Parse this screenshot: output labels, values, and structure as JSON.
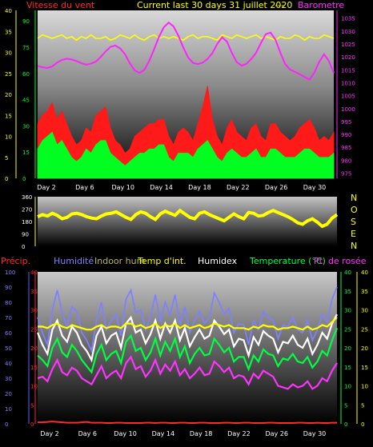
{
  "header": {
    "wind_label": "Vitesse du vent",
    "title": "Current last 30 days 31 juillet 2020",
    "sep": "---",
    "baro_label": "Barometre"
  },
  "legend": {
    "precip": "Précip.",
    "humidite": "Humidité",
    "indoor_hum": "Indoor hum",
    "temp_int": "Temp d'int.",
    "humidex": "Humidex",
    "temperature": "Temperature (°C)",
    "dew": "Pt. de rosée"
  },
  "compass": [
    "N",
    "O",
    "S",
    "E",
    "N"
  ],
  "colors": {
    "wind_label": "#ff2a2a",
    "title": "#ffff00",
    "baro_label": "#ff33ff",
    "precip": "#ff2a2a",
    "humidite": "#8080ff",
    "indoor_hum": "#b8b870",
    "temp_int": "#ffff00",
    "humidex": "#ffffff",
    "temperature": "#00ff40",
    "dew": "#ff33ff",
    "gust": "#ff1a1a",
    "wind": "#00ff20",
    "baro": "#ff22ff",
    "direction": "#ffff00"
  },
  "chart_data": [
    {
      "type": "area",
      "name": "wind_barometer",
      "x_ticks": [
        "Day 2",
        "Day 6",
        "Day 10",
        "Day 14",
        "Day 18",
        "Day 22",
        "Day 26",
        "Day 30"
      ],
      "y_left_ticks": [
        0,
        5,
        10,
        15,
        20,
        25,
        30,
        35,
        40
      ],
      "y_left_range": [
        0,
        40
      ],
      "y_mid_ticks": [
        0,
        15,
        30,
        45,
        60,
        75,
        90
      ],
      "y_mid_range": [
        0,
        96
      ],
      "y_right_ticks": [
        975,
        980,
        985,
        990,
        995,
        1000,
        1005,
        1010,
        1015,
        1020,
        1025,
        1030,
        1035
      ],
      "y_right_range": [
        973,
        1038
      ],
      "series": [
        {
          "key": "gust",
          "values": [
            13,
            15,
            16,
            18,
            14,
            16,
            13,
            10,
            8,
            9,
            12,
            11,
            15,
            16,
            17,
            12,
            9,
            8,
            6,
            7,
            10,
            11,
            12,
            13,
            13,
            14,
            14,
            10,
            8,
            11,
            12,
            11,
            9,
            13,
            17,
            22,
            14,
            10,
            8,
            12,
            14,
            11,
            10,
            9,
            12,
            13,
            10,
            9,
            13,
            13,
            11,
            10,
            9,
            10,
            12,
            13,
            14,
            12,
            9,
            10,
            9,
            11
          ]
        },
        {
          "key": "wind",
          "values": [
            7,
            9,
            10,
            11,
            8,
            9,
            7,
            5,
            4,
            5,
            7,
            6,
            8,
            9,
            9,
            6,
            5,
            4,
            3,
            4,
            5,
            6,
            6,
            7,
            7,
            8,
            8,
            5,
            4,
            6,
            6,
            6,
            5,
            7,
            8,
            9,
            7,
            5,
            4,
            6,
            7,
            6,
            5,
            5,
            6,
            7,
            5,
            5,
            7,
            7,
            6,
            5,
            5,
            5,
            6,
            7,
            7,
            6,
            5,
            5,
            5,
            6
          ]
        },
        {
          "key": "barometer",
          "values": [
            1016.5,
            1016.0,
            1015.7,
            1016.3,
            1017.8,
            1018.8,
            1019.3,
            1019.0,
            1018.4,
            1017.6,
            1017.0,
            1017.4,
            1018.2,
            1020.0,
            1022.1,
            1023.9,
            1024.4,
            1023.3,
            1021.0,
            1017.5,
            1014.8,
            1013.8,
            1015.0,
            1018.5,
            1023.0,
            1027.8,
            1031.5,
            1033.3,
            1031.8,
            1028.2,
            1023.6,
            1019.8,
            1017.7,
            1017.2,
            1017.8,
            1019.2,
            1021.5,
            1025.0,
            1027.6,
            1025.9,
            1021.6,
            1018.0,
            1016.6,
            1017.3,
            1019.2,
            1021.6,
            1025.4,
            1028.8,
            1029.4,
            1026.6,
            1021.6,
            1017.2,
            1015.1,
            1014.2,
            1013.3,
            1012.2,
            1011.2,
            1013.9,
            1018.1,
            1021.0,
            1018.4,
            1013.8
          ]
        },
        {
          "key": "wind_direction_dir",
          "values": [
            80,
            82,
            81,
            80,
            81,
            82,
            80,
            81,
            79,
            81,
            80,
            82,
            80,
            80,
            81,
            79,
            80,
            82,
            81,
            80,
            82,
            80,
            79,
            81,
            82,
            80,
            81,
            80,
            81,
            80,
            79,
            81,
            82,
            80,
            81,
            81,
            80,
            79,
            82,
            81,
            80,
            82,
            81,
            80,
            81,
            82,
            80,
            81,
            80,
            79,
            81,
            80,
            80,
            82,
            81,
            79,
            81,
            80,
            80,
            82,
            81,
            80
          ]
        }
      ]
    },
    {
      "type": "line",
      "name": "wind_direction",
      "x_ticks": [
        "Day 2",
        "Day 6",
        "Day 10",
        "Day 14",
        "Day 18",
        "Day 22",
        "Day 26",
        "Day 30"
      ],
      "y_ticks": [
        0,
        90,
        180,
        270,
        360
      ],
      "y_range": [
        0,
        360
      ],
      "series": [
        {
          "key": "direction",
          "values": [
            215,
            230,
            220,
            240,
            225,
            200,
            210,
            235,
            240,
            230,
            215,
            205,
            200,
            220,
            235,
            240,
            250,
            230,
            210,
            195,
            230,
            250,
            240,
            215,
            195,
            235,
            255,
            240,
            225,
            260,
            235,
            210,
            200,
            240,
            250,
            230,
            215,
            200,
            185,
            210,
            235,
            215,
            200,
            245,
            240,
            220,
            225,
            245,
            260,
            245,
            230,
            215,
            195,
            170,
            160,
            185,
            200,
            175,
            145,
            160,
            205,
            230
          ]
        }
      ]
    },
    {
      "type": "line",
      "name": "humidity_temperature",
      "x_ticks": [
        "Day 2",
        "Day 6",
        "Day 10",
        "Day 14",
        "Day 18",
        "Day 22",
        "Day 26",
        "Day 30"
      ],
      "y_left_ticks": [
        0,
        10,
        20,
        30,
        40,
        50,
        60,
        70,
        80,
        90,
        100
      ],
      "y_left_range": [
        0,
        100
      ],
      "y_inner_ticks": [
        0,
        5,
        10,
        15,
        20,
        25,
        30,
        35,
        40
      ],
      "y_inner_range": [
        0,
        40
      ],
      "y_right_ticks": [
        0,
        5,
        10,
        15,
        20,
        25,
        30,
        35,
        40
      ],
      "y_right_range": [
        0,
        40
      ],
      "series": [
        {
          "key": "humidite",
          "values": [
            70,
            60,
            52,
            75,
            88,
            73,
            64,
            77,
            74,
            60,
            55,
            48,
            68,
            80,
            62,
            68,
            72,
            58,
            82,
            88,
            73,
            75,
            62,
            70,
            85,
            67,
            80,
            72,
            85,
            65,
            77,
            60,
            68,
            74,
            66,
            70,
            86,
            80,
            72,
            76,
            60,
            66,
            65,
            52,
            68,
            62,
            74,
            70,
            68,
            56,
            65,
            64,
            70,
            62,
            60,
            68,
            55,
            62,
            72,
            67,
            82,
            90
          ]
        },
        {
          "key": "humidex",
          "values": [
            60,
            52,
            46,
            62,
            68,
            58,
            54,
            64,
            60,
            52,
            48,
            42,
            58,
            64,
            53,
            58,
            60,
            50,
            66,
            70,
            60,
            62,
            53,
            59,
            68,
            56,
            66,
            60,
            68,
            55,
            63,
            51,
            57,
            62,
            56,
            58,
            68,
            64,
            59,
            62,
            51,
            56,
            55,
            45,
            57,
            52,
            61,
            58,
            56,
            47,
            54,
            53,
            58,
            52,
            50,
            56,
            46,
            52,
            60,
            56,
            66,
            72
          ]
        },
        {
          "key": "temperature",
          "values": [
            45,
            42,
            38,
            50,
            56,
            47,
            44,
            52,
            48,
            42,
            38,
            34,
            46,
            52,
            42,
            46,
            48,
            40,
            54,
            58,
            48,
            50,
            42,
            47,
            56,
            45,
            54,
            48,
            56,
            44,
            51,
            40,
            46,
            50,
            45,
            46,
            56,
            52,
            47,
            50,
            41,
            44,
            44,
            36,
            45,
            41,
            49,
            46,
            45,
            38,
            43,
            42,
            46,
            41,
            40,
            44,
            37,
            41,
            48,
            45,
            55,
            63
          ]
        },
        {
          "key": "temp_int",
          "values": [
            64,
            64,
            63,
            65,
            66,
            64,
            63,
            65,
            64,
            63,
            62,
            62,
            64,
            65,
            63,
            64,
            64,
            63,
            66,
            66,
            64,
            65,
            63,
            64,
            66,
            63,
            65,
            64,
            66,
            63,
            65,
            63,
            64,
            65,
            63,
            64,
            66,
            65,
            64,
            65,
            63,
            63,
            63,
            62,
            64,
            63,
            65,
            64,
            64,
            62,
            63,
            63,
            64,
            63,
            62,
            64,
            62,
            63,
            65,
            64,
            67,
            70
          ]
        },
        {
          "key": "dew",
          "values": [
            30,
            31,
            28,
            36,
            42,
            34,
            32,
            37,
            35,
            30,
            28,
            26,
            32,
            38,
            30,
            33,
            35,
            30,
            40,
            44,
            36,
            38,
            31,
            35,
            42,
            33,
            39,
            35,
            41,
            32,
            36,
            30,
            33,
            37,
            32,
            33,
            41,
            38,
            34,
            37,
            30,
            32,
            31,
            26,
            33,
            30,
            35,
            33,
            31,
            25,
            24,
            23,
            26,
            24,
            25,
            28,
            23,
            25,
            30,
            28,
            35,
            40
          ]
        },
        {
          "key": "precip",
          "values": [
            0.4,
            0.4,
            0.5,
            0.6,
            0.5,
            0.4,
            0.3,
            0.3,
            0.3,
            0.4,
            0.5,
            0.3,
            0.3,
            0.3,
            0.2,
            0.2,
            0.3,
            0.3,
            0.2,
            0.2,
            0.2,
            0.2,
            0.3,
            0.3,
            0.2,
            0.3,
            0.3,
            0.2,
            0.2,
            0.3,
            0.3,
            0.2,
            0.2,
            0.3,
            0.3,
            0.2,
            0.2,
            0.2,
            0.3,
            0.3,
            0.2,
            0.2,
            0.3,
            0.3,
            0.2,
            0.2,
            0.2,
            0.3,
            0.3,
            0.2,
            0.2,
            0.2,
            0.2,
            0.3,
            0.3,
            0.2,
            0.2,
            0.3,
            0.2,
            0.2,
            0.3,
            0.3
          ]
        }
      ]
    }
  ]
}
